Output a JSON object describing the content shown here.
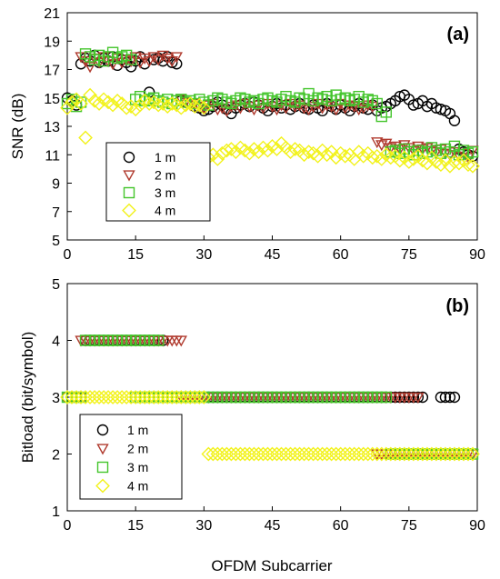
{
  "figure": {
    "xlabel": "OFDM Subcarrier"
  },
  "chart_data": [
    {
      "type": "scatter",
      "panel_label": "(a)",
      "ylabel": "SNR (dB)",
      "xlim": [
        0,
        90
      ],
      "ylim": [
        5,
        21
      ],
      "xticks": [
        "0",
        "15",
        "30",
        "45",
        "60",
        "75",
        "90"
      ],
      "yticks": [
        "5",
        "7",
        "9",
        "11",
        "13",
        "15",
        "17",
        "19",
        "21"
      ],
      "legend": "left-center",
      "grid": false,
      "series": [
        {
          "name": "1 m",
          "marker": "circle",
          "color": "#000000",
          "x": [
            0,
            1,
            2,
            3,
            4,
            5,
            6,
            7,
            8,
            9,
            10,
            11,
            12,
            13,
            14,
            15,
            16,
            17,
            18,
            19,
            20,
            21,
            22,
            23,
            24,
            25,
            26,
            27,
            28,
            29,
            30,
            31,
            32,
            33,
            34,
            35,
            36,
            37,
            38,
            39,
            40,
            41,
            42,
            43,
            44,
            45,
            46,
            47,
            48,
            49,
            50,
            51,
            52,
            53,
            54,
            55,
            56,
            57,
            58,
            59,
            60,
            61,
            62,
            63,
            64,
            65,
            66,
            67,
            68,
            69,
            70,
            71,
            72,
            73,
            74,
            75,
            76,
            77,
            78,
            79,
            80,
            81,
            82,
            83,
            84,
            85,
            86,
            87,
            88,
            89
          ],
          "y": [
            15.0,
            14.8,
            14.5,
            17.4,
            17.8,
            17.6,
            18.0,
            17.5,
            17.8,
            17.6,
            17.9,
            17.3,
            17.7,
            17.5,
            17.2,
            17.6,
            17.9,
            17.4,
            15.4,
            17.7,
            17.8,
            17.6,
            17.9,
            17.5,
            17.4,
            14.8,
            14.7,
            14.6,
            14.4,
            14.3,
            14.1,
            14.2,
            14.4,
            14.7,
            14.5,
            14.2,
            13.9,
            14.3,
            14.5,
            14.6,
            14.4,
            14.7,
            14.5,
            14.3,
            14.1,
            14.4,
            14.6,
            14.3,
            14.5,
            14.2,
            14.4,
            14.6,
            14.3,
            14.2,
            14.5,
            14.3,
            14.1,
            14.6,
            14.4,
            14.2,
            14.5,
            14.3,
            14.1,
            14.4,
            14.6,
            14.3,
            14.2,
            14.5,
            14.1,
            14.3,
            14.4,
            14.6,
            14.8,
            15.1,
            15.2,
            14.9,
            14.5,
            14.6,
            14.8,
            14.4,
            14.6,
            14.3,
            14.2,
            14.1,
            13.9,
            13.4,
            11.4,
            11.2,
            11.0,
            10.9
          ]
        },
        {
          "name": "2 m",
          "marker": "triangle-down",
          "color": "#b03a2e",
          "x": [
            3,
            4,
            5,
            6,
            7,
            8,
            9,
            10,
            11,
            12,
            13,
            14,
            15,
            16,
            17,
            18,
            19,
            20,
            21,
            22,
            23,
            24,
            25,
            26,
            27,
            28,
            29,
            30,
            31,
            32,
            33,
            34,
            35,
            36,
            37,
            38,
            39,
            40,
            41,
            42,
            43,
            44,
            45,
            46,
            47,
            48,
            49,
            50,
            51,
            52,
            53,
            54,
            55,
            56,
            57,
            58,
            59,
            60,
            61,
            62,
            63,
            64,
            65,
            66,
            67,
            68,
            69,
            70,
            71,
            72,
            73,
            74,
            75,
            76,
            77,
            78,
            79,
            80,
            81,
            82,
            83,
            84,
            85,
            86,
            87,
            88,
            89
          ],
          "y": [
            17.9,
            17.6,
            17.2,
            17.8,
            17.5,
            17.9,
            17.6,
            17.4,
            17.8,
            17.5,
            17.7,
            17.6,
            17.9,
            17.5,
            17.8,
            17.6,
            17.9,
            17.7,
            18.0,
            17.8,
            17.6,
            17.9,
            14.9,
            14.7,
            14.5,
            14.6,
            14.4,
            14.3,
            14.5,
            14.6,
            14.2,
            14.3,
            14.1,
            14.4,
            14.5,
            14.3,
            14.6,
            14.4,
            14.2,
            14.5,
            14.3,
            14.6,
            14.4,
            14.2,
            14.5,
            14.3,
            14.6,
            14.4,
            14.5,
            14.3,
            14.2,
            14.4,
            14.6,
            14.3,
            14.5,
            14.4,
            14.2,
            14.6,
            14.3,
            14.5,
            14.4,
            14.2,
            14.3,
            14.5,
            14.4,
            11.9,
            11.7,
            11.8,
            11.5,
            11.6,
            11.4,
            11.7,
            11.5,
            11.3,
            11.6,
            11.4,
            11.5,
            11.3,
            11.2,
            11.4,
            11.1,
            11.0,
            11.2,
            10.9,
            11.1,
            10.8,
            11.3
          ]
        },
        {
          "name": "3 m",
          "marker": "square",
          "color": "#44c52c",
          "x": [
            0,
            1,
            2,
            3,
            4,
            5,
            6,
            7,
            8,
            9,
            10,
            11,
            12,
            13,
            14,
            15,
            16,
            17,
            18,
            19,
            20,
            21,
            22,
            23,
            24,
            25,
            26,
            27,
            28,
            29,
            30,
            31,
            32,
            33,
            34,
            35,
            36,
            37,
            38,
            39,
            40,
            41,
            42,
            43,
            44,
            45,
            46,
            47,
            48,
            49,
            50,
            51,
            52,
            53,
            54,
            55,
            56,
            57,
            58,
            59,
            60,
            61,
            62,
            63,
            64,
            65,
            66,
            67,
            68,
            69,
            70,
            71,
            72,
            73,
            74,
            75,
            76,
            77,
            78,
            79,
            80,
            81,
            82,
            83,
            84,
            85,
            86,
            87,
            88,
            89
          ],
          "y": [
            14.6,
            14.9,
            14.4,
            14.7,
            18.1,
            17.9,
            17.7,
            18.0,
            17.6,
            17.9,
            18.2,
            17.8,
            17.9,
            18.0,
            17.7,
            14.9,
            15.1,
            14.8,
            14.9,
            15.0,
            14.8,
            14.7,
            14.9,
            14.6,
            14.8,
            14.9,
            14.7,
            14.8,
            14.6,
            14.9,
            14.7,
            14.5,
            14.8,
            15.0,
            14.9,
            14.7,
            14.6,
            14.8,
            15.0,
            14.9,
            14.7,
            14.8,
            14.6,
            14.9,
            15.0,
            14.8,
            14.7,
            14.9,
            15.1,
            14.8,
            14.7,
            15.0,
            14.9,
            15.3,
            14.8,
            15.0,
            14.9,
            15.1,
            14.8,
            15.2,
            14.9,
            15.0,
            14.8,
            14.9,
            15.1,
            14.7,
            14.9,
            14.8,
            14.6,
            13.7,
            14.0,
            11.2,
            11.3,
            11.1,
            11.4,
            11.2,
            11.0,
            11.3,
            11.1,
            11.2,
            11.5,
            11.3,
            11.1,
            11.4,
            11.2,
            11.6,
            11.0,
            11.3,
            11.1,
            11.2
          ]
        },
        {
          "name": "4 m",
          "marker": "diamond",
          "color": "#f2f21a",
          "x": [
            0,
            1,
            2,
            3,
            4,
            5,
            6,
            7,
            8,
            9,
            10,
            11,
            12,
            13,
            14,
            15,
            16,
            17,
            18,
            19,
            20,
            21,
            22,
            23,
            24,
            25,
            26,
            27,
            28,
            29,
            30,
            31,
            32,
            33,
            34,
            35,
            36,
            37,
            38,
            39,
            40,
            41,
            42,
            43,
            44,
            45,
            46,
            47,
            48,
            49,
            50,
            51,
            52,
            53,
            54,
            55,
            56,
            57,
            58,
            59,
            60,
            61,
            62,
            63,
            64,
            65,
            66,
            67,
            68,
            69,
            70,
            71,
            72,
            73,
            74,
            75,
            76,
            77,
            78,
            79,
            80,
            81,
            82,
            83,
            84,
            85,
            86,
            87,
            88,
            89
          ],
          "y": [
            14.3,
            14.7,
            14.9,
            14.6,
            12.2,
            15.2,
            14.8,
            14.6,
            14.9,
            14.7,
            14.5,
            14.8,
            14.6,
            14.3,
            14.4,
            14.2,
            14.5,
            14.8,
            14.6,
            14.7,
            14.5,
            14.6,
            14.4,
            14.6,
            14.5,
            14.3,
            14.5,
            14.6,
            14.4,
            14.5,
            14.3,
            10.8,
            11.0,
            10.7,
            11.1,
            11.3,
            11.4,
            11.2,
            11.5,
            11.3,
            11.1,
            11.4,
            11.2,
            11.5,
            11.3,
            11.6,
            11.4,
            11.8,
            11.5,
            11.2,
            11.4,
            11.3,
            11.0,
            11.2,
            11.1,
            10.9,
            11.3,
            11.0,
            11.2,
            10.8,
            11.1,
            10.9,
            11.0,
            10.7,
            11.2,
            10.9,
            11.1,
            10.8,
            10.9,
            10.7,
            11.0,
            10.8,
            10.9,
            10.6,
            10.8,
            10.5,
            10.7,
            10.9,
            10.6,
            10.4,
            10.8,
            10.5,
            10.3,
            10.6,
            10.2,
            10.5,
            10.4,
            10.6,
            10.3,
            10.2
          ]
        }
      ]
    },
    {
      "type": "scatter",
      "panel_label": "(b)",
      "ylabel": "Bitload (bit/symbol)",
      "xlim": [
        0,
        90
      ],
      "ylim": [
        1,
        5
      ],
      "xticks": [
        "0",
        "15",
        "30",
        "45",
        "60",
        "75",
        "90"
      ],
      "yticks": [
        "1",
        "2",
        "3",
        "4",
        "5"
      ],
      "legend": "bottom-left",
      "grid": false,
      "series": [
        {
          "name": "1 m",
          "marker": "circle",
          "color": "#000000",
          "segments": [
            {
              "x_from": 0,
              "x_to": 3,
              "y": 3
            },
            {
              "x_from": 4,
              "x_to": 21,
              "y": 4
            },
            {
              "x_from": 22,
              "x_to": 78,
              "y": 3
            },
            {
              "x_from": 82,
              "x_to": 85,
              "y": 3
            }
          ]
        },
        {
          "name": "2 m",
          "marker": "triangle-down",
          "color": "#b03a2e",
          "segments": [
            {
              "x_from": 3,
              "x_to": 25,
              "y": 4
            },
            {
              "x_from": 25,
              "x_to": 67,
              "y": 3
            },
            {
              "x_from": 68,
              "x_to": 77,
              "y": 3
            },
            {
              "x_from": 68,
              "x_to": 89,
              "y": 2
            }
          ]
        },
        {
          "name": "3 m",
          "marker": "square",
          "color": "#44c52c",
          "segments": [
            {
              "x_from": 0,
              "x_to": 3,
              "y": 3
            },
            {
              "x_from": 4,
              "x_to": 20,
              "y": 4
            },
            {
              "x_from": 15,
              "x_to": 70,
              "y": 3
            },
            {
              "x_from": 71,
              "x_to": 89,
              "y": 2
            }
          ]
        },
        {
          "name": "4 m",
          "marker": "diamond",
          "color": "#f2f21a",
          "segments": [
            {
              "x_from": 0,
              "x_to": 30,
              "y": 3
            },
            {
              "x_from": 31,
              "x_to": 89,
              "y": 2
            }
          ]
        }
      ]
    }
  ]
}
